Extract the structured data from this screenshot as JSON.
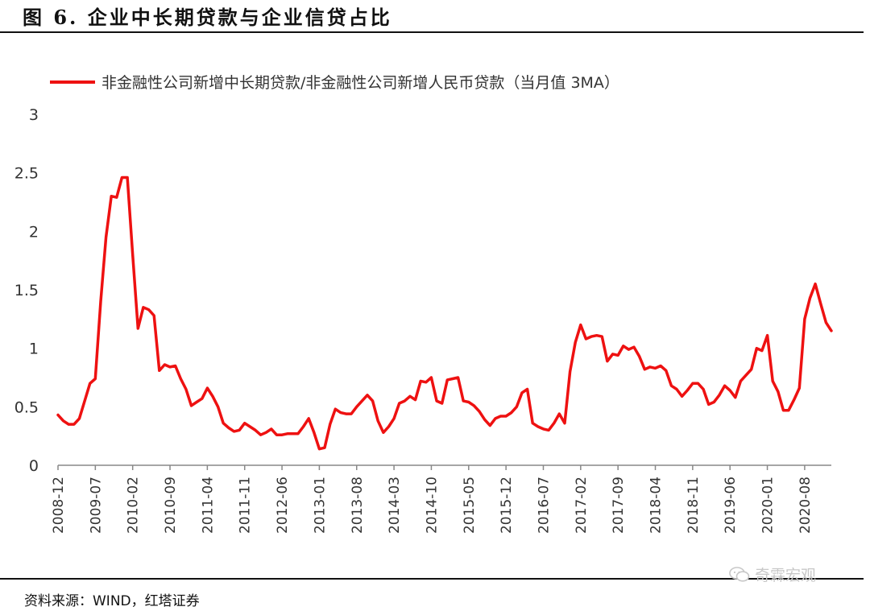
{
  "header": {
    "title": "图 6. 企业中长期贷款与企业信贷占比"
  },
  "footer": {
    "source": "资料来源：WIND，红塔证券"
  },
  "watermark": {
    "text": "奇霖宏观",
    "icon": "wechat-icon"
  },
  "colors": {
    "series": "#ee1111",
    "axis": "#888888",
    "text": "#333333"
  },
  "chart_data": {
    "type": "line",
    "title": "",
    "xlabel": "",
    "ylabel": "",
    "ylim": [
      0,
      3
    ],
    "yticks": [
      0,
      0.5,
      1,
      1.5,
      2,
      2.5,
      3
    ],
    "ytick_labels": [
      "0",
      "0.5",
      "1",
      "1.5",
      "2",
      "2.5",
      "3"
    ],
    "xtick_labels": [
      "2008-12",
      "2009-07",
      "2010-02",
      "2010-09",
      "2011-04",
      "2011-11",
      "2012-06",
      "2013-01",
      "2013-08",
      "2014-03",
      "2014-10",
      "2015-05",
      "2015-12",
      "2016-07",
      "2017-02",
      "2017-09",
      "2018-04",
      "2018-11",
      "2019-06",
      "2020-01",
      "2020-08"
    ],
    "legend_position": "top",
    "grid": false,
    "x_start": "2008-12",
    "x_end": "2021-02",
    "series": [
      {
        "name": "非金融性公司新增中长期贷款/非金融性公司新增人民币贷款（当月值 3MA）",
        "color": "#ee1111",
        "values": [
          0.43,
          0.38,
          0.35,
          0.35,
          0.4,
          0.55,
          0.7,
          0.74,
          1.4,
          1.95,
          2.3,
          2.29,
          2.46,
          2.46,
          1.8,
          1.17,
          1.35,
          1.33,
          1.28,
          0.81,
          0.86,
          0.84,
          0.85,
          0.74,
          0.65,
          0.51,
          0.54,
          0.57,
          0.66,
          0.59,
          0.5,
          0.36,
          0.32,
          0.29,
          0.3,
          0.36,
          0.33,
          0.3,
          0.26,
          0.28,
          0.31,
          0.26,
          0.26,
          0.27,
          0.27,
          0.27,
          0.33,
          0.4,
          0.28,
          0.14,
          0.15,
          0.35,
          0.48,
          0.45,
          0.44,
          0.44,
          0.5,
          0.55,
          0.6,
          0.55,
          0.38,
          0.28,
          0.33,
          0.4,
          0.53,
          0.55,
          0.59,
          0.56,
          0.72,
          0.71,
          0.75,
          0.55,
          0.53,
          0.73,
          0.74,
          0.75,
          0.55,
          0.54,
          0.51,
          0.46,
          0.39,
          0.34,
          0.4,
          0.42,
          0.42,
          0.45,
          0.5,
          0.62,
          0.65,
          0.36,
          0.33,
          0.31,
          0.3,
          0.36,
          0.44,
          0.36,
          0.8,
          1.05,
          1.2,
          1.08,
          1.1,
          1.11,
          1.1,
          0.89,
          0.95,
          0.94,
          1.02,
          0.99,
          1.01,
          0.93,
          0.82,
          0.84,
          0.83,
          0.85,
          0.81,
          0.68,
          0.65,
          0.59,
          0.64,
          0.7,
          0.7,
          0.65,
          0.52,
          0.54,
          0.6,
          0.68,
          0.64,
          0.58,
          0.72,
          0.77,
          0.82,
          1.0,
          0.98,
          1.11,
          0.72,
          0.63,
          0.47,
          0.47,
          0.56,
          0.66,
          1.25,
          1.43,
          1.55,
          1.38,
          1.22,
          1.15
        ]
      }
    ]
  }
}
